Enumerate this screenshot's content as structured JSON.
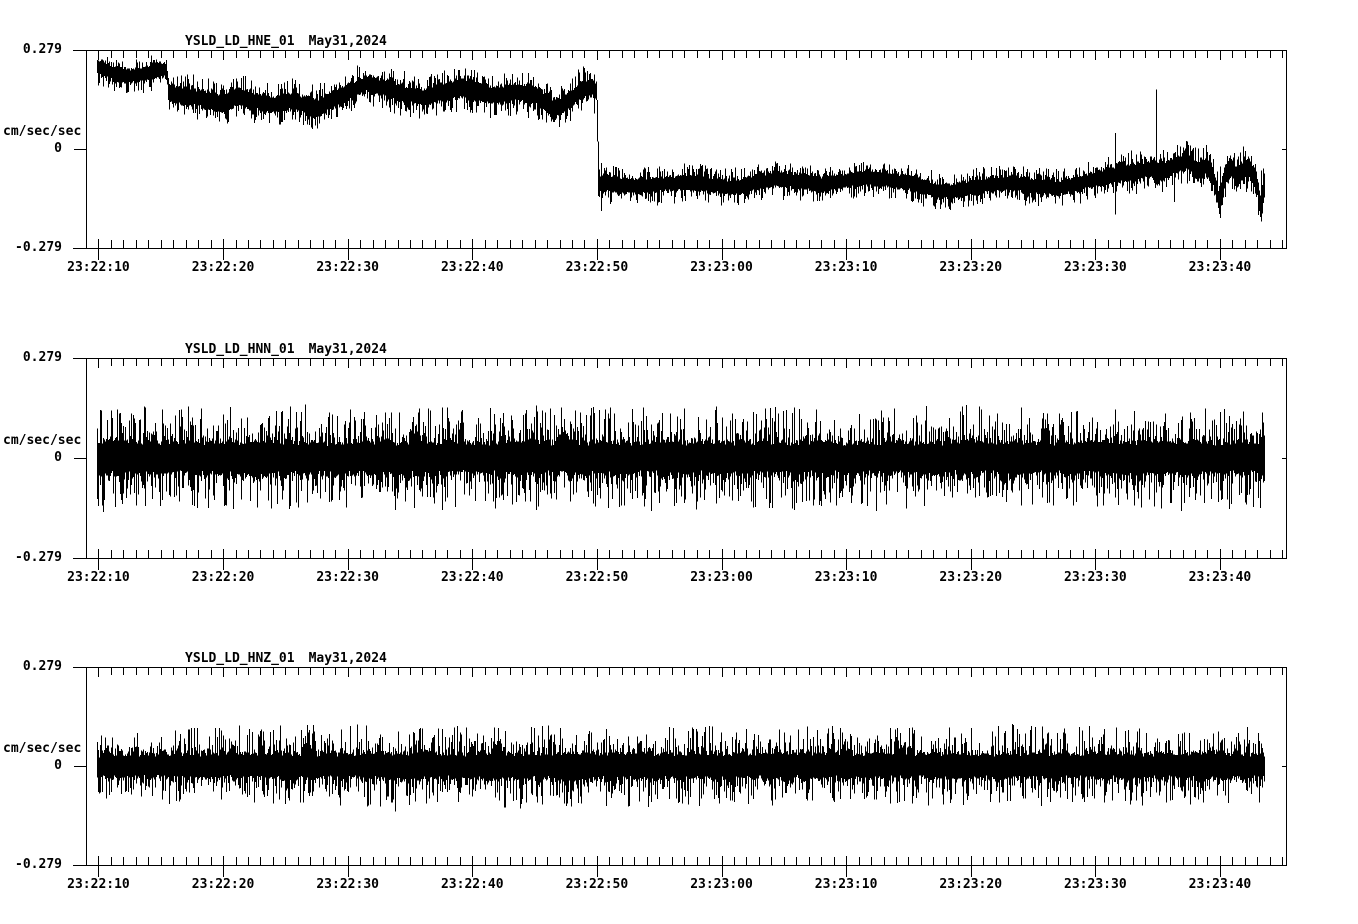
{
  "page": {
    "background": "#ffffff",
    "foreground": "#000000"
  },
  "chart_data": [
    {
      "type": "line",
      "variant": "seismogram-minmax-envelope",
      "station": "YSLD_LD_HNE_01",
      "date": "May31,2024",
      "ylabel": "cm/sec/sec",
      "yticks": [
        "0.279",
        "0",
        "-0.279"
      ],
      "ylim": [
        -0.279,
        0.279
      ],
      "grid": false,
      "time_axis": {
        "t0_label": "23:22:00",
        "start_s": 9.0,
        "end_s": 105.3,
        "major_tick_s": 10,
        "minor_tick_s": 1,
        "tick_times_s": [
          10,
          20,
          30,
          40,
          50,
          60,
          70,
          80,
          90,
          100
        ],
        "tick_labels": [
          "23:22:10",
          "23:22:20",
          "23:22:30",
          "23:22:40",
          "23:22:50",
          "23:23:00",
          "23:23:10",
          "23:23:20",
          "23:23:30",
          "23:23:40"
        ]
      },
      "data_window_s": [
        9.9,
        103.5
      ],
      "mean_curve": [
        [
          9.9,
          0.23
        ],
        [
          11,
          0.215
        ],
        [
          12.5,
          0.205
        ],
        [
          14,
          0.215
        ],
        [
          15.4,
          0.225
        ],
        [
          15.7,
          0.155
        ],
        [
          17,
          0.15
        ],
        [
          19,
          0.135
        ],
        [
          20,
          0.125
        ],
        [
          21,
          0.15
        ],
        [
          22.5,
          0.135
        ],
        [
          24,
          0.125
        ],
        [
          25.5,
          0.135
        ],
        [
          27.5,
          0.115
        ],
        [
          28.5,
          0.135
        ],
        [
          30,
          0.16
        ],
        [
          31.5,
          0.185
        ],
        [
          33,
          0.17
        ],
        [
          34.5,
          0.155
        ],
        [
          36,
          0.145
        ],
        [
          37.5,
          0.16
        ],
        [
          39,
          0.17
        ],
        [
          40.5,
          0.16
        ],
        [
          42,
          0.15
        ],
        [
          43.5,
          0.16
        ],
        [
          45,
          0.15
        ],
        [
          46.5,
          0.115
        ],
        [
          47.5,
          0.13
        ],
        [
          48.7,
          0.165
        ],
        [
          49.6,
          0.175
        ],
        [
          49.95,
          0.16
        ],
        [
          50.1,
          -0.095
        ],
        [
          51,
          -0.1
        ],
        [
          53,
          -0.105
        ],
        [
          55,
          -0.1
        ],
        [
          57,
          -0.095
        ],
        [
          59,
          -0.1
        ],
        [
          61,
          -0.11
        ],
        [
          63,
          -0.095
        ],
        [
          64.5,
          -0.085
        ],
        [
          66,
          -0.09
        ],
        [
          68,
          -0.1
        ],
        [
          70,
          -0.09
        ],
        [
          71.5,
          -0.08
        ],
        [
          73,
          -0.085
        ],
        [
          75,
          -0.095
        ],
        [
          77,
          -0.115
        ],
        [
          78.5,
          -0.12
        ],
        [
          80,
          -0.11
        ],
        [
          81.5,
          -0.1
        ],
        [
          83,
          -0.095
        ],
        [
          85,
          -0.105
        ],
        [
          87,
          -0.11
        ],
        [
          88.5,
          -0.1
        ],
        [
          90,
          -0.085
        ],
        [
          91.5,
          -0.075
        ],
        [
          93,
          -0.065
        ],
        [
          94.5,
          -0.055
        ],
        [
          95.5,
          -0.06
        ],
        [
          96.5,
          -0.045
        ],
        [
          97.3,
          -0.035
        ],
        [
          98.2,
          -0.06
        ],
        [
          98.8,
          -0.05
        ],
        [
          99.4,
          -0.075
        ],
        [
          99.9,
          -0.145
        ],
        [
          100.4,
          -0.075
        ],
        [
          100.9,
          -0.05
        ],
        [
          101.4,
          -0.08
        ],
        [
          101.9,
          -0.055
        ],
        [
          102.4,
          -0.06
        ],
        [
          102.9,
          -0.09
        ],
        [
          103.2,
          -0.16
        ],
        [
          103.5,
          -0.1
        ]
      ],
      "noise_core_curve": [
        [
          9.9,
          0.018
        ],
        [
          15.5,
          0.018
        ],
        [
          16,
          0.022
        ],
        [
          49.9,
          0.022
        ],
        [
          50.3,
          0.019
        ],
        [
          88,
          0.019
        ],
        [
          92,
          0.021
        ],
        [
          103.5,
          0.023
        ]
      ],
      "noise_tail_ratio": 1.9,
      "noise_tail_pow": 2.6,
      "spikes": [
        {
          "t": 49.75,
          "lo": 0.1,
          "hi": 0.21
        },
        {
          "t": 50.35,
          "lo": -0.175,
          "hi": -0.04
        },
        {
          "t": 91.55,
          "lo": -0.185,
          "hi": 0.045
        },
        {
          "t": 94.9,
          "lo": -0.1,
          "hi": 0.167
        },
        {
          "t": 96.3,
          "lo": -0.15,
          "hi": -0.02
        },
        {
          "t": 100.0,
          "lo": -0.195,
          "hi": -0.05
        },
        {
          "t": 103.3,
          "lo": -0.205,
          "hi": -0.06
        }
      ],
      "seed": 20240531
    },
    {
      "type": "line",
      "variant": "seismogram-minmax-envelope",
      "station": "YSLD_LD_HNN_01",
      "date": "May31,2024",
      "ylabel": "cm/sec/sec",
      "yticks": [
        "0.279",
        "0",
        "-0.279"
      ],
      "ylim": [
        -0.279,
        0.279
      ],
      "grid": false,
      "time_axis": {
        "t0_label": "23:22:00",
        "start_s": 9.0,
        "end_s": 105.3,
        "major_tick_s": 10,
        "minor_tick_s": 1,
        "tick_times_s": [
          10,
          20,
          30,
          40,
          50,
          60,
          70,
          80,
          90,
          100
        ],
        "tick_labels": [
          "23:22:10",
          "23:22:20",
          "23:22:30",
          "23:22:40",
          "23:22:50",
          "23:23:00",
          "23:23:10",
          "23:23:20",
          "23:23:30",
          "23:23:40"
        ]
      },
      "data_window_s": [
        9.9,
        103.5
      ],
      "mean_curve": [
        [
          9.9,
          0
        ],
        [
          103.5,
          0
        ]
      ],
      "noise_core_curve": [
        [
          9.9,
          0.042
        ],
        [
          103.5,
          0.042
        ]
      ],
      "noise_tail_ratio": 2.4,
      "noise_tail_pow": 2.6,
      "spikes": [
        {
          "t": 30.2,
          "lo": -0.05,
          "hi": 0.135
        },
        {
          "t": 35.3,
          "lo": -0.14,
          "hi": 0.05
        },
        {
          "t": 55.0,
          "lo": -0.125,
          "hi": 0.05
        },
        {
          "t": 79.6,
          "lo": -0.06,
          "hi": 0.148
        },
        {
          "t": 86.6,
          "lo": -0.132,
          "hi": 0.05
        },
        {
          "t": 95.3,
          "lo": -0.135,
          "hi": 0.05
        },
        {
          "t": 100.9,
          "lo": -0.128,
          "hi": 0.04
        }
      ],
      "seed": 77031
    },
    {
      "type": "line",
      "variant": "seismogram-minmax-envelope",
      "station": "YSLD_LD_HNZ_01",
      "date": "May31,2024",
      "ylabel": "cm/sec/sec",
      "yticks": [
        "0.279",
        "0",
        "-0.279"
      ],
      "ylim": [
        -0.279,
        0.279
      ],
      "grid": false,
      "time_axis": {
        "t0_label": "23:22:00",
        "start_s": 9.0,
        "end_s": 105.3,
        "major_tick_s": 10,
        "minor_tick_s": 1,
        "tick_times_s": [
          10,
          20,
          30,
          40,
          50,
          60,
          70,
          80,
          90,
          100
        ],
        "tick_labels": [
          "23:22:10",
          "23:22:20",
          "23:22:30",
          "23:22:40",
          "23:22:50",
          "23:23:00",
          "23:23:10",
          "23:23:20",
          "23:23:30",
          "23:23:40"
        ]
      },
      "data_window_s": [
        9.9,
        103.5
      ],
      "mean_curve": [
        [
          9.9,
          0
        ],
        [
          103.5,
          0
        ]
      ],
      "noise_core_curve": [
        [
          9.9,
          0.03
        ],
        [
          25,
          0.033
        ],
        [
          45,
          0.034
        ],
        [
          70,
          0.032
        ],
        [
          103.5,
          0.033
        ]
      ],
      "noise_tail_ratio": 2.4,
      "noise_tail_pow": 2.6,
      "spikes": [
        {
          "t": 29.4,
          "lo": -0.112,
          "hi": 0.05
        },
        {
          "t": 33.8,
          "lo": -0.128,
          "hi": 0.05
        },
        {
          "t": 35.4,
          "lo": -0.1,
          "hi": 0.06
        },
        {
          "t": 66.9,
          "lo": -0.05,
          "hi": 0.112
        },
        {
          "t": 75.3,
          "lo": -0.05,
          "hi": 0.108
        },
        {
          "t": 83.3,
          "lo": -0.055,
          "hi": 0.118
        },
        {
          "t": 93.5,
          "lo": -0.05,
          "hi": 0.105
        }
      ],
      "seed": 9180
    }
  ]
}
